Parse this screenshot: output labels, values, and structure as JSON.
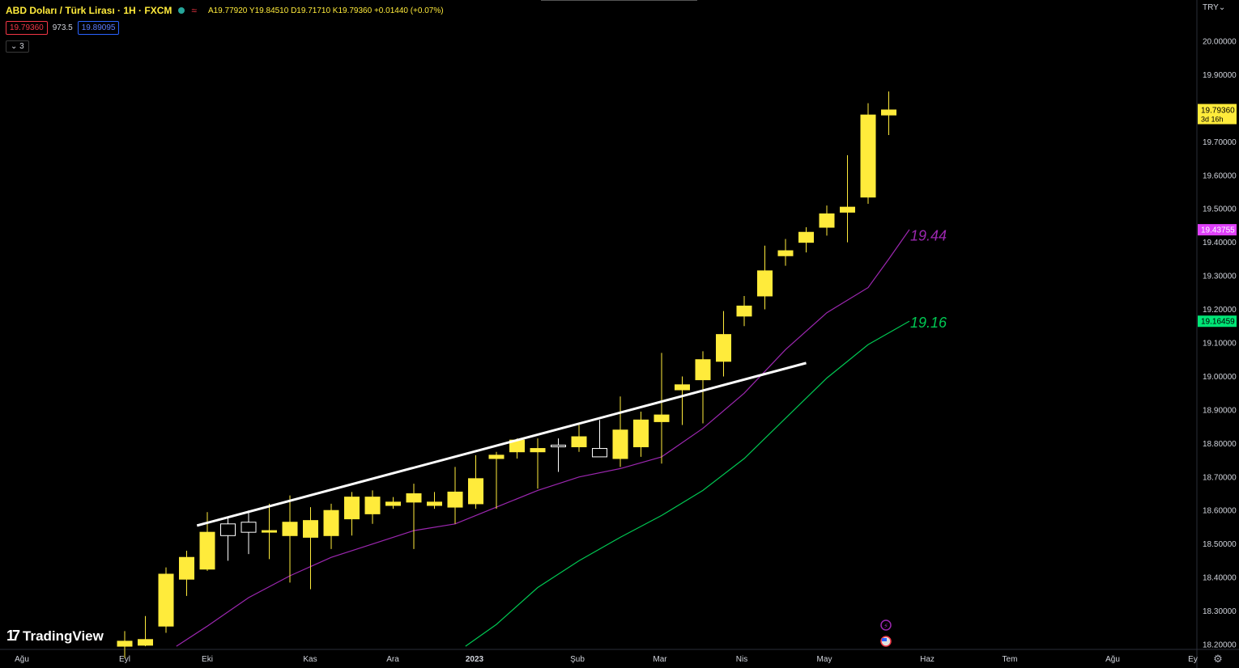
{
  "header": {
    "symbol": "ABD Doları / Türk Lirası · 1H · FXCM",
    "ohlc": "A19.77920 Y19.84510 D19.71710 K19.79360 +0.01440 (+0.07%)",
    "sell_price": "19.79360",
    "spread": "973.5",
    "buy_price": "19.89095",
    "indicator_toggle": "⌄ 3",
    "currency": "TRY⌄"
  },
  "branding": {
    "logo_text": "TradingView",
    "logo_mark": "17"
  },
  "colors": {
    "background": "#000000",
    "candle_up": "#ffeb3b",
    "candle_down": "#000000",
    "candle_outline": "#ffffff",
    "ma_fast": "#9c27b0",
    "ma_slow": "#00c853",
    "trendline": "#ffffff",
    "price_tag": "#ffeb3b"
  },
  "chart_data": {
    "type": "candlestick",
    "ylim": [
      18.18,
      20.1
    ],
    "y_ticks": [
      "20.00000",
      "19.90000",
      "19.80000",
      "19.70000",
      "19.60000",
      "19.50000",
      "19.40000",
      "19.30000",
      "19.20000",
      "19.10000",
      "19.00000",
      "18.90000",
      "18.80000",
      "18.70000",
      "18.60000",
      "18.50000",
      "18.40000",
      "18.30000",
      "18.20000"
    ],
    "x_labels": [
      "Ağu",
      "Eyl",
      "Eki",
      "Kas",
      "Ara",
      "2023",
      "Şub",
      "Mar",
      "Nis",
      "May",
      "Haz",
      "Tem",
      "Ağu",
      "Ey"
    ],
    "candles": [
      {
        "o": 18.195,
        "h": 18.24,
        "l": 18.16,
        "c": 18.21
      },
      {
        "o": 18.198,
        "h": 18.285,
        "l": 18.195,
        "c": 18.215
      },
      {
        "o": 18.255,
        "h": 18.43,
        "l": 18.235,
        "c": 18.41
      },
      {
        "o": 18.395,
        "h": 18.48,
        "l": 18.345,
        "c": 18.46
      },
      {
        "o": 18.425,
        "h": 18.595,
        "l": 18.42,
        "c": 18.535
      },
      {
        "o": 18.56,
        "h": 18.58,
        "l": 18.45,
        "c": 18.525
      },
      {
        "o": 18.565,
        "h": 18.6,
        "l": 18.47,
        "c": 18.535
      },
      {
        "o": 18.54,
        "h": 18.62,
        "l": 18.455,
        "c": 18.54
      },
      {
        "o": 18.525,
        "h": 18.645,
        "l": 18.385,
        "c": 18.565
      },
      {
        "o": 18.52,
        "h": 18.61,
        "l": 18.365,
        "c": 18.57
      },
      {
        "o": 18.525,
        "h": 18.62,
        "l": 18.485,
        "c": 18.6
      },
      {
        "o": 18.575,
        "h": 18.655,
        "l": 18.525,
        "c": 18.64
      },
      {
        "o": 18.59,
        "h": 18.66,
        "l": 18.56,
        "c": 18.64
      },
      {
        "o": 18.615,
        "h": 18.64,
        "l": 18.605,
        "c": 18.625
      },
      {
        "o": 18.625,
        "h": 18.68,
        "l": 18.485,
        "c": 18.65
      },
      {
        "o": 18.615,
        "h": 18.655,
        "l": 18.605,
        "c": 18.625
      },
      {
        "o": 18.61,
        "h": 18.73,
        "l": 18.56,
        "c": 18.655
      },
      {
        "o": 18.62,
        "h": 18.765,
        "l": 18.605,
        "c": 18.695
      },
      {
        "o": 18.755,
        "h": 18.775,
        "l": 18.605,
        "c": 18.765
      },
      {
        "o": 18.775,
        "h": 18.815,
        "l": 18.755,
        "c": 18.81
      },
      {
        "o": 18.775,
        "h": 18.815,
        "l": 18.665,
        "c": 18.785
      },
      {
        "o": 18.795,
        "h": 18.815,
        "l": 18.715,
        "c": 18.79
      },
      {
        "o": 18.79,
        "h": 18.855,
        "l": 18.775,
        "c": 18.82
      },
      {
        "o": 18.785,
        "h": 18.87,
        "l": 18.765,
        "c": 18.76
      },
      {
        "o": 18.755,
        "h": 18.94,
        "l": 18.73,
        "c": 18.84
      },
      {
        "o": 18.79,
        "h": 18.895,
        "l": 18.76,
        "c": 18.87
      },
      {
        "o": 18.865,
        "h": 19.07,
        "l": 18.74,
        "c": 18.885
      },
      {
        "o": 18.96,
        "h": 19.0,
        "l": 18.855,
        "c": 18.975
      },
      {
        "o": 18.99,
        "h": 19.075,
        "l": 18.86,
        "c": 19.05
      },
      {
        "o": 19.045,
        "h": 19.195,
        "l": 19.0,
        "c": 19.125
      },
      {
        "o": 19.18,
        "h": 19.24,
        "l": 19.15,
        "c": 19.21
      },
      {
        "o": 19.24,
        "h": 19.39,
        "l": 19.2,
        "c": 19.315
      },
      {
        "o": 19.36,
        "h": 19.41,
        "l": 19.33,
        "c": 19.375
      },
      {
        "o": 19.4,
        "h": 19.445,
        "l": 19.37,
        "c": 19.43
      },
      {
        "o": 19.445,
        "h": 19.51,
        "l": 19.42,
        "c": 19.485
      },
      {
        "o": 19.49,
        "h": 19.66,
        "l": 19.4,
        "c": 19.505
      },
      {
        "o": 19.535,
        "h": 19.815,
        "l": 19.515,
        "c": 19.78
      },
      {
        "o": 19.78,
        "h": 19.85,
        "l": 19.72,
        "c": 19.795
      }
    ],
    "ma_fast": [
      {
        "i": 2.5,
        "v": 18.195
      },
      {
        "i": 4,
        "v": 18.255
      },
      {
        "i": 6,
        "v": 18.34
      },
      {
        "i": 8,
        "v": 18.405
      },
      {
        "i": 10,
        "v": 18.46
      },
      {
        "i": 12,
        "v": 18.5
      },
      {
        "i": 14,
        "v": 18.54
      },
      {
        "i": 16,
        "v": 18.56
      },
      {
        "i": 18,
        "v": 18.61
      },
      {
        "i": 20,
        "v": 18.66
      },
      {
        "i": 22,
        "v": 18.7
      },
      {
        "i": 24,
        "v": 18.725
      },
      {
        "i": 26,
        "v": 18.76
      },
      {
        "i": 28,
        "v": 18.845
      },
      {
        "i": 30,
        "v": 18.95
      },
      {
        "i": 32,
        "v": 19.08
      },
      {
        "i": 34,
        "v": 19.19
      },
      {
        "i": 36,
        "v": 19.265
      },
      {
        "i": 37,
        "v": 19.35
      },
      {
        "i": 38,
        "v": 19.438
      }
    ],
    "ma_slow": [
      {
        "i": 16.5,
        "v": 18.195
      },
      {
        "i": 18,
        "v": 18.26
      },
      {
        "i": 20,
        "v": 18.37
      },
      {
        "i": 22,
        "v": 18.45
      },
      {
        "i": 24,
        "v": 18.52
      },
      {
        "i": 26,
        "v": 18.585
      },
      {
        "i": 28,
        "v": 18.66
      },
      {
        "i": 30,
        "v": 18.755
      },
      {
        "i": 32,
        "v": 18.875
      },
      {
        "i": 34,
        "v": 18.995
      },
      {
        "i": 36,
        "v": 19.095
      },
      {
        "i": 37,
        "v": 19.13
      },
      {
        "i": 38,
        "v": 19.165
      }
    ],
    "trendline": {
      "i0": 3.5,
      "v0": 18.555,
      "i1": 33,
      "v1": 19.04
    },
    "ma_fast_label": "19.44",
    "ma_slow_label": "19.16",
    "last_price": "19.79360",
    "countdown": "3d 16h",
    "ma_fast_value": "19.43755",
    "ma_slow_value": "19.16459"
  }
}
